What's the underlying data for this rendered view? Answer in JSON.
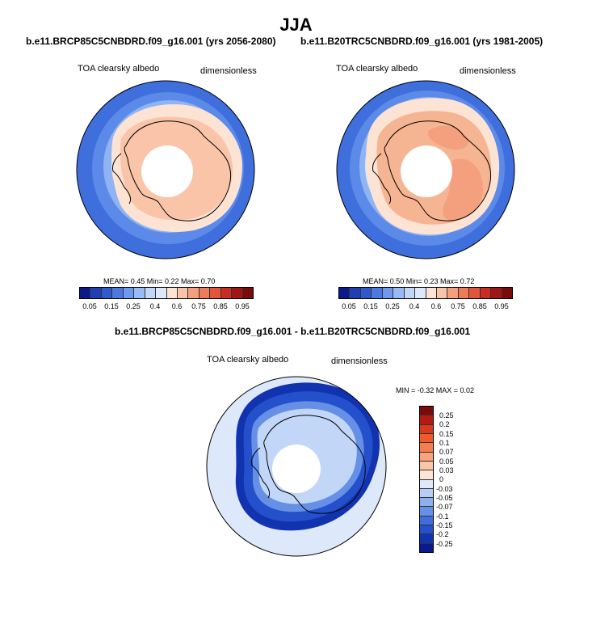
{
  "figure": {
    "title": "JJA"
  },
  "panels": {
    "left": {
      "case_title": "b.e11.BRCP85C5CNBDRD.f09_g16.001 (yrs 2056-2080)",
      "variable": "TOA clearsky albedo",
      "units": "dimensionless",
      "stats": "MEAN=  0.45  Min=  0.22  Max=  0.70"
    },
    "right": {
      "case_title": "b.e11.B20TRC5CNBDRD.f09_g16.001 (yrs 1981-2005)",
      "variable": "TOA clearsky albedo",
      "units": "dimensionless",
      "stats": "MEAN=  0.50  Min=  0.23  Max=  0.72"
    },
    "diff": {
      "case_title": "b.e11.BRCP85C5CNBDRD.f09_g16.001 - b.e11.B20TRC5CNBDRD.f09_g16.001",
      "variable": "TOA clearsky albedo",
      "units": "dimensionless",
      "stats": "MIN =  -0.32 MAX =   0.02"
    }
  },
  "colorbar_abs": {
    "labels": [
      "0.05",
      "0.15",
      "0.25",
      "0.4",
      "0.6",
      "0.75",
      "0.85",
      "0.95"
    ],
    "colors": [
      "#0a1a8c",
      "#1f3fb3",
      "#3059cf",
      "#4a7ae0",
      "#6d9af0",
      "#97bbf5",
      "#c2d6f8",
      "#dde8fb",
      "#fde3d3",
      "#f9c4a8",
      "#f4a07e",
      "#ee7c58",
      "#e2553a",
      "#c92d22",
      "#a01515",
      "#7a0b0b"
    ]
  },
  "colorbar_diff": {
    "labels": [
      "0.25",
      "0.2",
      "0.15",
      "0.1",
      "0.07",
      "0.05",
      "0.03",
      "0",
      "-0.03",
      "-0.05",
      "-0.07",
      "-0.1",
      "-0.15",
      "-0.2",
      "-0.25"
    ],
    "colors": [
      "#7a0b0b",
      "#b31a12",
      "#d9391c",
      "#ef5a2a",
      "#f57e4f",
      "#f8a47c",
      "#fbc6a8",
      "#fde4d6",
      "#dfeaf9",
      "#b7cdf3",
      "#8fb0ee",
      "#6690e6",
      "#3f6edc",
      "#2450cc",
      "#1233b0",
      "#0a1a8c"
    ]
  },
  "map_colors": {
    "ocean_far": "#4a7ae0",
    "ocean_mid": "#6d9af0",
    "ocean_near": "#97bbf5",
    "sea_ice_edge": "#dde8fb",
    "ice_left": "#fde3d3",
    "land_left": "#f9c4a8",
    "land_right": "#f6b592",
    "land_right_high": "#f4a07e",
    "diff_background": "#dde8fb",
    "diff_ring": "#2450cc",
    "diff_ring_dark": "#1233b0",
    "diff_inner": "#c2d6f8",
    "missing": "#ffffff"
  }
}
